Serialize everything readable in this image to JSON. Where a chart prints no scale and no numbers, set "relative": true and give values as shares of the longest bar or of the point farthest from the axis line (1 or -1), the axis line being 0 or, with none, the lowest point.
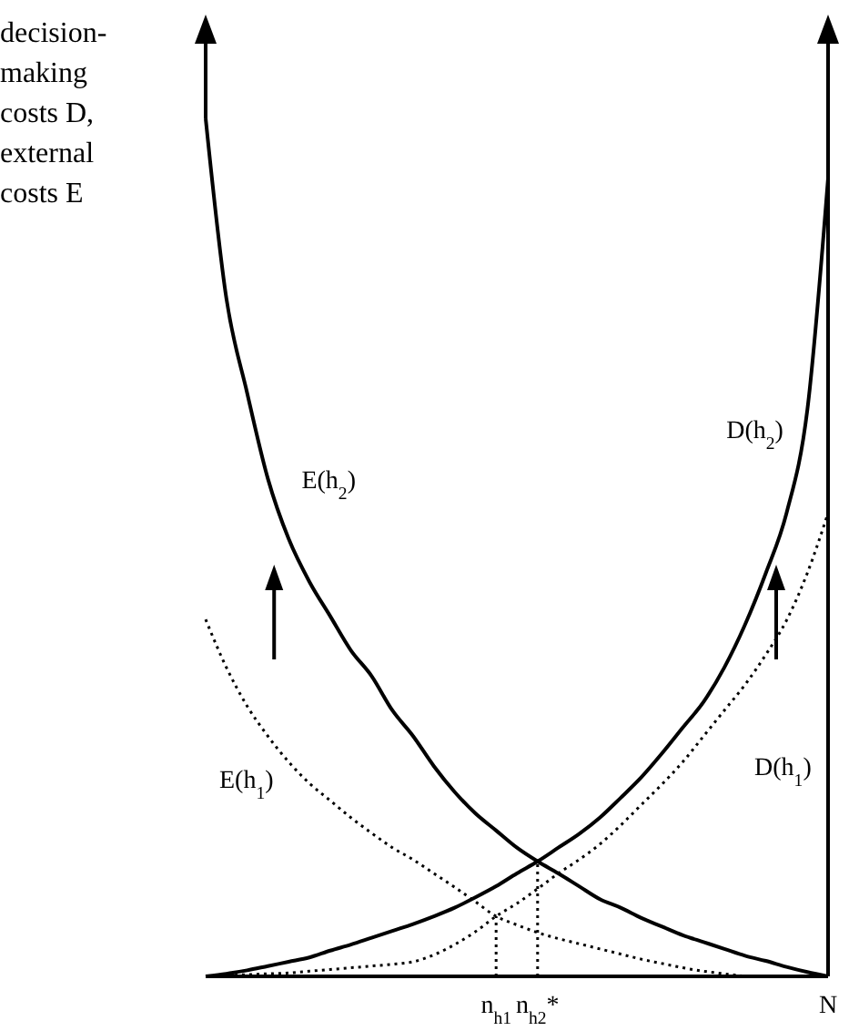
{
  "chart_data": {
    "type": "line",
    "relative": true,
    "ylabel": "decision-making costs D, external costs E",
    "categories": [
      null,
      null,
      null,
      null,
      null,
      null,
      null,
      null,
      null,
      null,
      null,
      null,
      null,
      null,
      "n$_{h1}$",
      null,
      "n$_{h2}$*",
      null,
      null,
      null,
      null,
      null,
      null,
      null,
      null,
      null,
      null,
      null,
      null,
      null,
      "N"
    ],
    "marker": "none",
    "series": [
      {
        "name": "E(h$_{2}$)",
        "color": "#000000",
        "line_style": "solid",
        "values": [
          1,
          0.79,
          0.68,
          0.58,
          0.51,
          0.46,
          0.42,
          0.38,
          0.35,
          0.31,
          0.28,
          0.245,
          0.215,
          0.19,
          0.17,
          0.15,
          0.134,
          0.12,
          0.105,
          0.09,
          0.08,
          0.068,
          0.058,
          0.048,
          0.04,
          0.032,
          0.024,
          0.018,
          0.011,
          0.005,
          0
        ]
      },
      {
        "name": "D(h$_{2}$)",
        "color": "#000000",
        "line_style": "solid",
        "values": [
          0,
          0.003,
          0.007,
          0.012,
          0.017,
          0.022,
          0.03,
          0.037,
          0.045,
          0.053,
          0.061,
          0.07,
          0.08,
          0.092,
          0.105,
          0.12,
          0.134,
          0.15,
          0.166,
          0.185,
          0.208,
          0.232,
          0.26,
          0.29,
          0.32,
          0.36,
          0.41,
          0.47,
          0.54,
          0.66,
          0.93
        ]
      },
      {
        "name": "E(h$_{1}$)",
        "color": "#000000",
        "line_style": "dotted",
        "values": [
          0.416,
          0.36,
          0.315,
          0.28,
          0.25,
          0.225,
          0.205,
          0.185,
          0.167,
          0.15,
          0.136,
          0.12,
          0.104,
          0.087,
          0.07,
          0.06,
          0.051,
          0.044,
          0.038,
          0.032,
          0.026,
          0.02,
          0.015,
          0.01,
          0.006,
          0.003,
          0,
          null,
          null,
          null,
          null
        ]
      },
      {
        "name": "D(h$_{1}$)",
        "color": "#000000",
        "line_style": "dotted",
        "values": [
          0,
          0.001,
          0.002,
          0.003,
          0.004,
          0.006,
          0.008,
          0.01,
          0.012,
          0.014,
          0.017,
          0.025,
          0.037,
          0.052,
          0.07,
          0.085,
          0.102,
          0.12,
          0.136,
          0.154,
          0.176,
          0.2,
          0.224,
          0.25,
          0.28,
          0.31,
          0.34,
          0.375,
          0.415,
          0.47,
          0.54
        ]
      },
      {
        "color": "#000000",
        "line_style": "dotted",
        "x": [
          "n$_{h1}$",
          "n$_{h1}$"
        ],
        "values": [
          0,
          0.07
        ]
      },
      {
        "color": "#000000",
        "line_style": "dotted",
        "x": [
          "n$_{h2}$*",
          "n$_{h2}$*"
        ],
        "values": [
          0,
          0.134
        ]
      }
    ]
  }
}
